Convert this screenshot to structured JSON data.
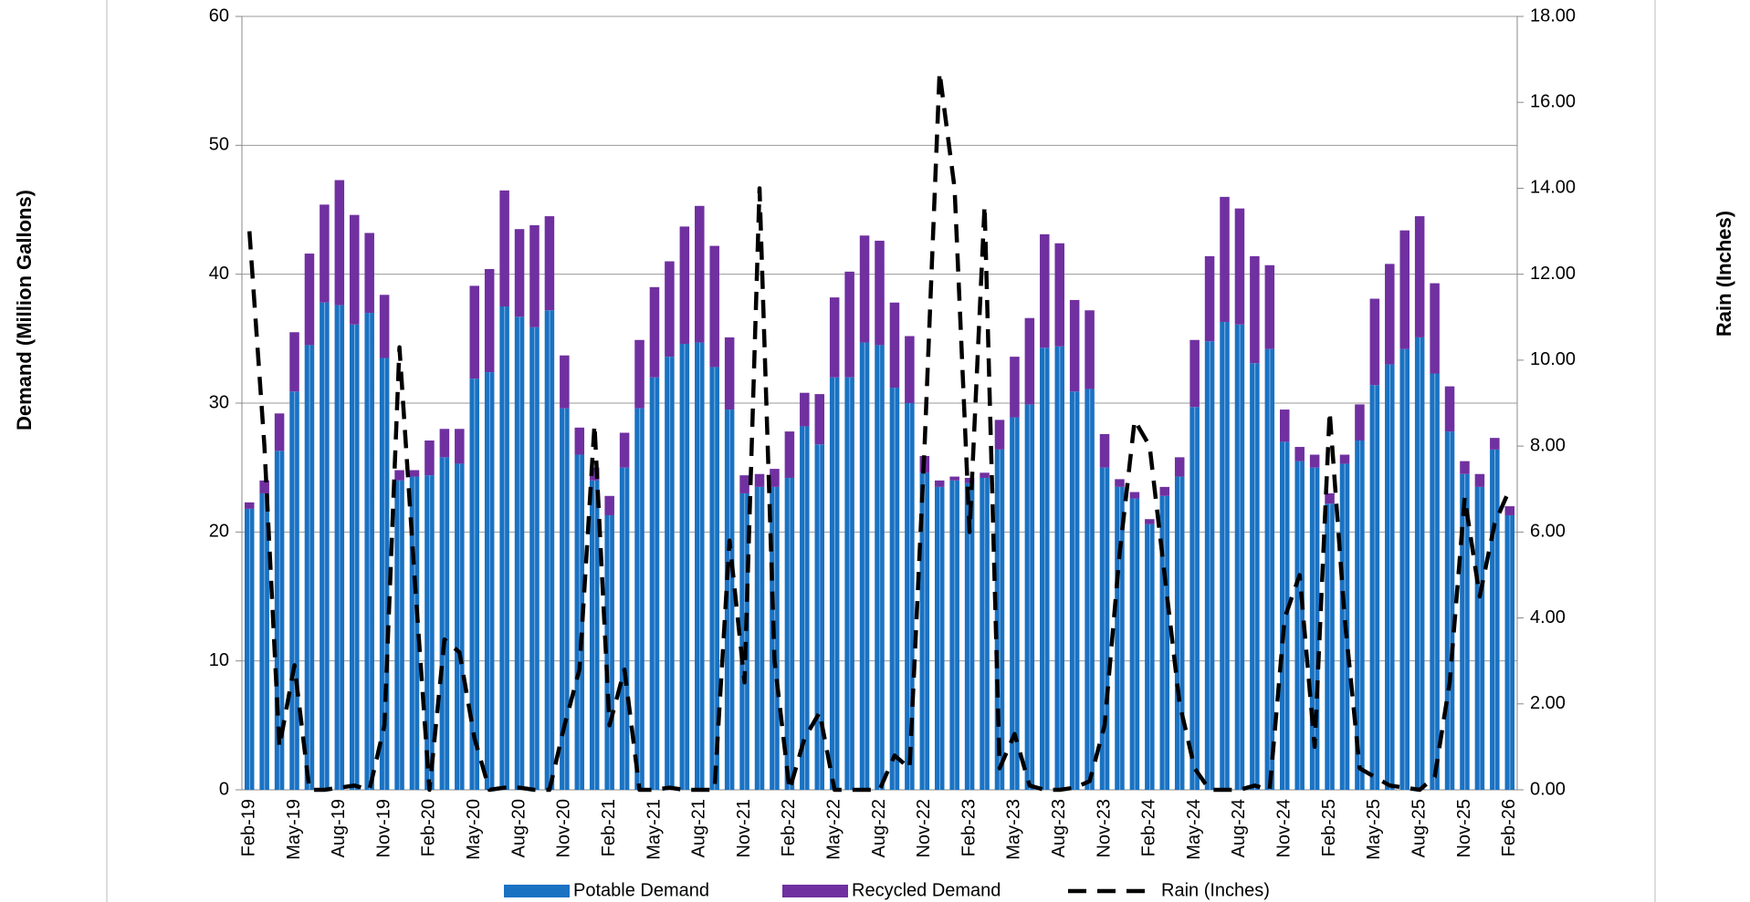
{
  "chart_data": {
    "type": "bar",
    "y_label": "Demand (Million Gallons)",
    "y2_label": "Rain (Inches)",
    "stacked": true,
    "categories": [
      "Feb-19",
      null,
      null,
      "May-19",
      null,
      null,
      "Aug-19",
      null,
      null,
      "Nov-19",
      null,
      null,
      "Feb-20",
      null,
      null,
      "May-20",
      null,
      null,
      "Aug-20",
      null,
      null,
      "Nov-20",
      null,
      null,
      "Feb-21",
      null,
      null,
      "May-21",
      null,
      null,
      "Aug-21",
      null,
      null,
      "Nov-21",
      null,
      null,
      "Feb-22",
      null,
      null,
      "May-22",
      null,
      null,
      "Aug-22",
      null,
      null,
      "Nov-22",
      null,
      null,
      "Feb-23",
      null,
      null,
      "May-23",
      null,
      null,
      "Aug-23",
      null,
      null,
      "Nov-23",
      null,
      null,
      "Feb-24",
      null,
      null,
      "May-24",
      null,
      null,
      "Aug-24",
      null,
      null,
      "Nov-24",
      null,
      null,
      "Feb-25",
      null,
      null,
      "May-25",
      null,
      null,
      "Aug-25",
      null,
      null,
      "Nov-25",
      null,
      null,
      "Feb-26"
    ],
    "series": [
      {
        "name": "Potable Demand",
        "color": "#1a72c2",
        "values": [
          21.8,
          23,
          26.3,
          30.9,
          34.5,
          37.8,
          37.6,
          36.1,
          37.0,
          33.5,
          24.0,
          24.3,
          24.4,
          25.8,
          25.3,
          31.9,
          32.4,
          37.5,
          36.7,
          35.9,
          37.2,
          29.6,
          26.0,
          24.0,
          21.3,
          25.0,
          29.6,
          32.0,
          33.6,
          34.6,
          34.7,
          32.8,
          29.5,
          23.0,
          23.5,
          23.5,
          24.2,
          28.2,
          26.8,
          32.0,
          32.0,
          34.7,
          34.5,
          31.2,
          30.0,
          24.6,
          23.5,
          24.0,
          23.8,
          24.2,
          26.4,
          28.9,
          29.9,
          34.3,
          34.4,
          30.9,
          31.1,
          25.0,
          23.5,
          22.6,
          20.6,
          22.8,
          24.3,
          29.7,
          34.8,
          36.3,
          36.1,
          33.1,
          34.2,
          27.0,
          25.5,
          25.0,
          22.2,
          25.3,
          27.1,
          31.4,
          33.0,
          34.2,
          35.1,
          32.3,
          27.8,
          24.5,
          23.5,
          26.4,
          21.3
        ]
      },
      {
        "name": "Recycled Demand",
        "color": "#7030a0",
        "values": [
          0.5,
          1,
          2.9,
          4.6,
          7.1,
          7.6,
          9.7,
          8.5,
          6.2,
          4.9,
          0.8,
          0.5,
          2.7,
          2.2,
          2.7,
          7.2,
          8.0,
          9.0,
          6.8,
          7.9,
          7.3,
          4.1,
          2.1,
          1.0,
          1.5,
          2.7,
          5.3,
          7.0,
          7.4,
          9.1,
          10.6,
          9.4,
          5.6,
          1.4,
          1.0,
          1.4,
          3.6,
          2.6,
          3.9,
          6.2,
          8.2,
          8.3,
          8.1,
          6.6,
          5.2,
          1.3,
          0.5,
          0.3,
          0.4,
          0.4,
          2.3,
          4.7,
          6.7,
          8.8,
          8.0,
          7.1,
          6.1,
          2.6,
          0.6,
          0.5,
          0.4,
          0.7,
          1.5,
          5.2,
          6.6,
          9.7,
          9.0,
          8.3,
          6.5,
          2.5,
          1.1,
          1.0,
          0.8,
          0.7,
          2.8,
          6.7,
          7.8,
          9.2,
          9.4,
          7.0,
          3.5,
          1.0,
          1.0,
          0.9,
          0.7
        ]
      },
      {
        "name": "Rain (Inches)",
        "color": "#000000",
        "axis": "y2",
        "values": [
          13.0,
          8.0,
          1.0,
          2.9,
          0.0,
          0.0,
          0.05,
          0.1,
          0.0,
          1.5,
          10.3,
          5.0,
          0.0,
          3.5,
          3.2,
          1.2,
          0.0,
          0.05,
          0.05,
          0.0,
          0.0,
          1.5,
          2.8,
          8.5,
          1.5,
          2.8,
          0.0,
          0.0,
          0.05,
          0.0,
          0.0,
          0.0,
          5.8,
          2.5,
          14.0,
          3.0,
          0.0,
          1.2,
          1.8,
          0.0,
          0.0,
          0.0,
          0.0,
          0.8,
          0.5,
          8.0,
          16.7,
          14.0,
          6.0,
          13.6,
          0.5,
          1.3,
          0.1,
          0.0,
          0.0,
          0.05,
          0.2,
          1.5,
          5.5,
          8.6,
          8.0,
          5.0,
          2.0,
          0.5,
          0.0,
          0.0,
          0.0,
          0.1,
          0.0,
          4.0,
          5.0,
          1.0,
          8.8,
          4.0,
          0.5,
          0.3,
          0.1,
          0.05,
          0.0,
          0.3,
          2.5,
          6.8,
          4.5,
          6.2,
          7.0
        ]
      }
    ],
    "ylim": [
      0,
      60
    ],
    "yticks": [
      0,
      10,
      20,
      30,
      40,
      50,
      60
    ],
    "y2lim": [
      0,
      18
    ],
    "y2ticks": [
      {
        "value": 0,
        "label": "0.00"
      },
      {
        "value": 2,
        "label": "2.00"
      },
      {
        "value": 4,
        "label": "4.00"
      },
      {
        "value": 6,
        "label": "6.00"
      },
      {
        "value": 8,
        "label": "8.00"
      },
      {
        "value": 10,
        "label": "10.00"
      },
      {
        "value": 12,
        "label": "12.00"
      },
      {
        "value": 14,
        "label": "14.00"
      },
      {
        "value": 16,
        "label": "16.00"
      },
      {
        "value": 18,
        "label": "18.00"
      }
    ],
    "grid": true,
    "legend": "bottom"
  }
}
